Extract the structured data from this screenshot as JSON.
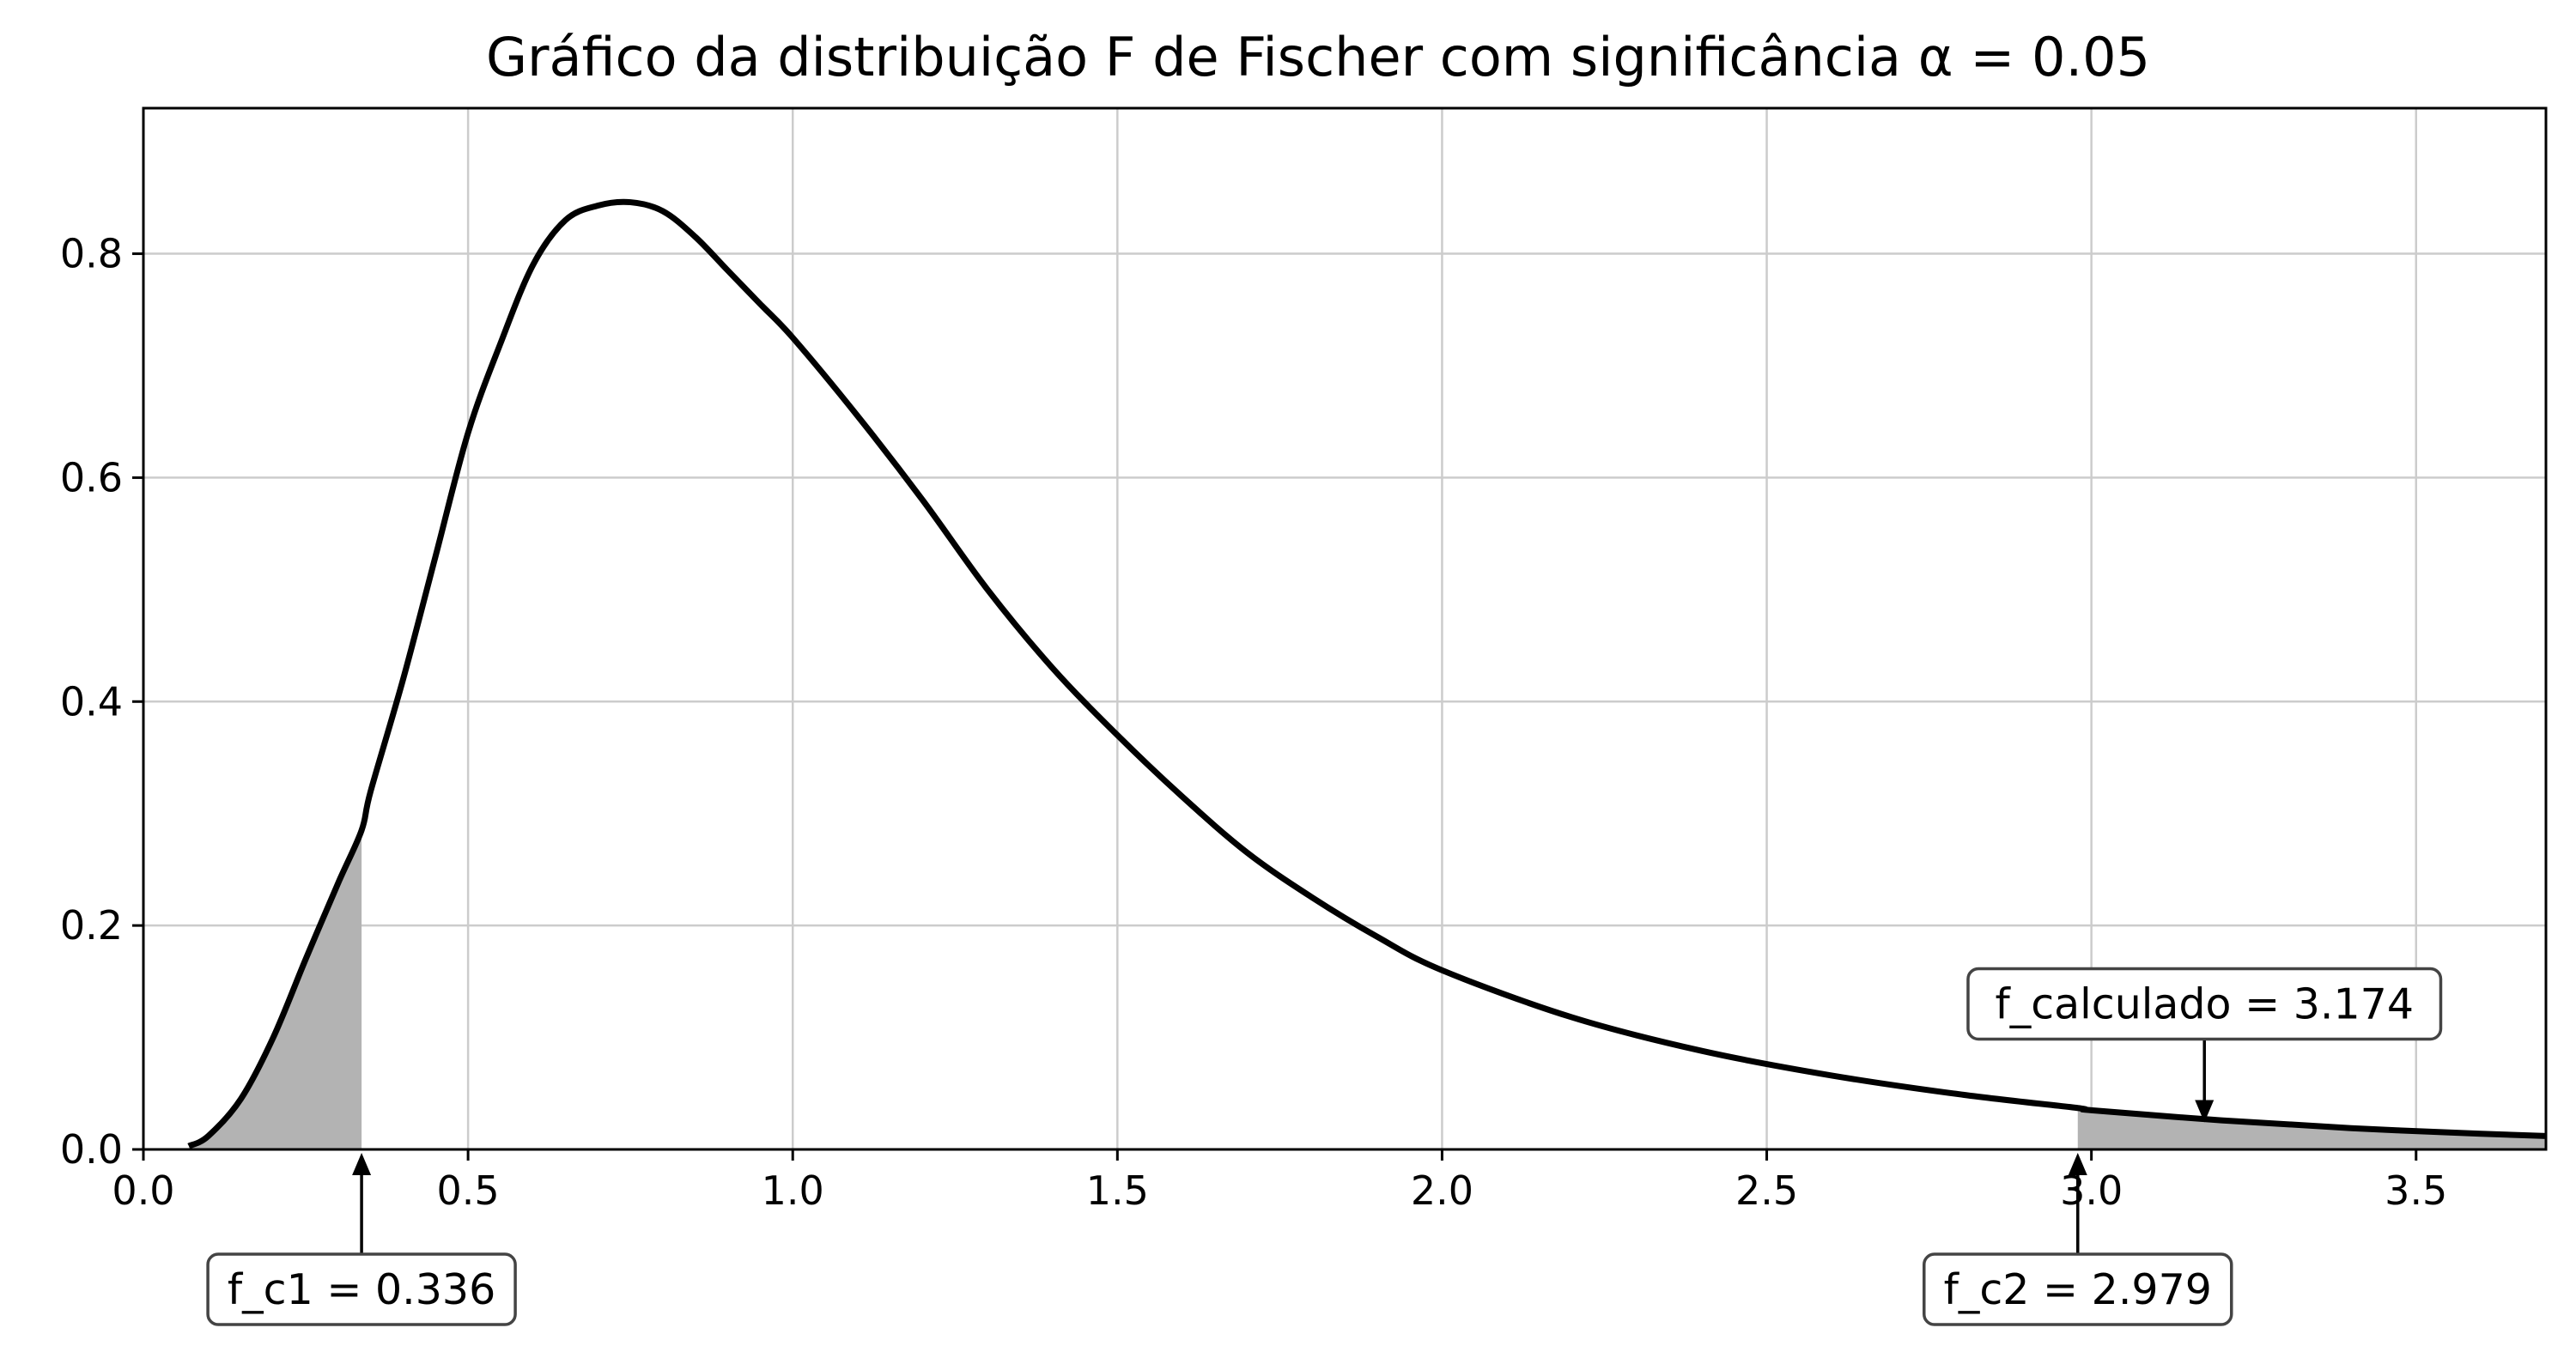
{
  "chart_data": {
    "type": "line",
    "title": "Gráfico da distribuição F de Fischer com significância α = 0.05",
    "xlabel": "",
    "ylabel": "",
    "xlim": [
      0.0,
      3.7
    ],
    "ylim": [
      0.0,
      0.93
    ],
    "grid": true,
    "x_ticks": [
      0.0,
      0.5,
      1.0,
      1.5,
      2.0,
      2.5,
      3.0,
      3.5
    ],
    "x_tick_labels": [
      "0.0",
      "0.5",
      "1.0",
      "1.5",
      "2.0",
      "2.5",
      "3.0",
      "3.5"
    ],
    "y_ticks": [
      0.0,
      0.2,
      0.4,
      0.6,
      0.8
    ],
    "y_tick_labels": [
      "0.0",
      "0.2",
      "0.4",
      "0.6",
      "0.8"
    ],
    "series": [
      {
        "color": "#000000",
        "x": [
          0.07,
          0.1,
          0.15,
          0.2,
          0.25,
          0.3,
          0.336,
          0.35,
          0.4,
          0.45,
          0.5,
          0.55,
          0.6,
          0.65,
          0.7,
          0.75,
          0.8,
          0.85,
          0.9,
          0.95,
          1.0,
          1.1,
          1.2,
          1.3,
          1.4,
          1.5,
          1.6,
          1.7,
          1.8,
          1.9,
          2.0,
          2.2,
          2.4,
          2.6,
          2.8,
          2.979,
          3.0,
          3.2,
          3.4,
          3.6,
          3.7
        ],
        "y": [
          0.003,
          0.012,
          0.045,
          0.1,
          0.17,
          0.238,
          0.285,
          0.32,
          0.42,
          0.53,
          0.64,
          0.72,
          0.79,
          0.83,
          0.843,
          0.846,
          0.838,
          0.815,
          0.785,
          0.755,
          0.725,
          0.655,
          0.58,
          0.5,
          0.43,
          0.37,
          0.315,
          0.265,
          0.225,
          0.19,
          0.16,
          0.118,
          0.088,
          0.066,
          0.049,
          0.037,
          0.035,
          0.026,
          0.019,
          0.014,
          0.012
        ]
      }
    ],
    "shaded_regions": [
      {
        "from": 0.07,
        "to": 0.336,
        "color": "#b3b3b3"
      },
      {
        "from": 2.979,
        "to": 3.7,
        "color": "#b3b3b3"
      }
    ],
    "annotations": [
      {
        "label": "f_c1 = 0.336",
        "x": 0.336,
        "text_x": 0.336,
        "text_y": -0.125,
        "arrow": "up"
      },
      {
        "label": "f_c2 = 2.979",
        "x": 2.979,
        "text_x": 2.979,
        "text_y": -0.125,
        "arrow": "up"
      },
      {
        "label": "f_calculado = 3.174",
        "x": 3.174,
        "text_x": 3.174,
        "text_y": 0.13,
        "arrow": "down"
      }
    ]
  }
}
